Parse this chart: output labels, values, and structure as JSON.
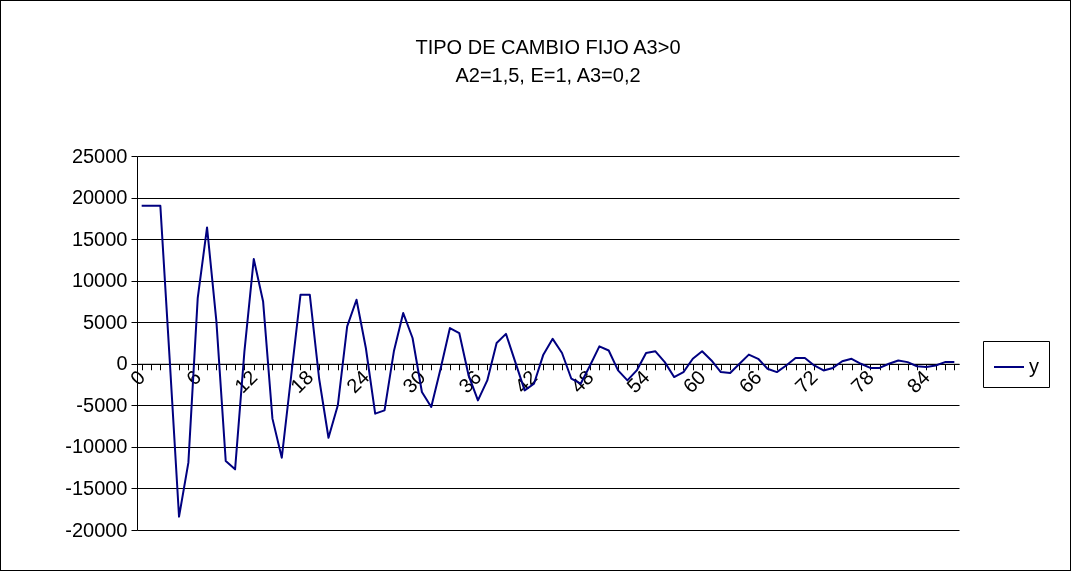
{
  "chart_data": {
    "type": "line",
    "title": "TIPO DE CAMBIO FIJO A3>0",
    "subtitle": "A2=1,5, E=1, A3=0,2",
    "categories": [
      "0",
      null,
      null,
      null,
      null,
      null,
      "6",
      null,
      null,
      null,
      null,
      null,
      "12",
      null,
      null,
      null,
      null,
      null,
      "18",
      null,
      null,
      null,
      null,
      null,
      "24",
      null,
      null,
      null,
      null,
      null,
      "30",
      null,
      null,
      null,
      null,
      null,
      "36",
      null,
      null,
      null,
      null,
      null,
      "42",
      null,
      null,
      null,
      null,
      null,
      "48",
      null,
      null,
      null,
      null,
      null,
      "54",
      null,
      null,
      null,
      null,
      null,
      "60",
      null,
      null,
      null,
      null,
      null,
      "66",
      null,
      null,
      null,
      null,
      null,
      "72",
      null,
      null,
      null,
      null,
      null,
      "78",
      null,
      null,
      null,
      null,
      null,
      "84",
      null,
      null,
      null
    ],
    "series": [
      {
        "name": "y",
        "color": "#000080",
        "values": [
          19000,
          19000,
          19000,
          500,
          -18400,
          -11900,
          7900,
          16400,
          5100,
          -11700,
          -12700,
          1500,
          12600,
          7500,
          -6600,
          -11300,
          -1500,
          8300,
          8300,
          -1800,
          -8900,
          -5000,
          4500,
          7700,
          1900,
          -6000,
          -5600,
          1500,
          6100,
          3100,
          -3400,
          -5200,
          -600,
          4300,
          3700,
          -1400,
          -4400,
          -2000,
          2500,
          3600,
          200,
          -3200,
          -2400,
          1100,
          3000,
          1300,
          -1800,
          -2400,
          -200,
          2100,
          1600,
          -800,
          -2000,
          -800,
          1300,
          1500,
          200,
          -1600,
          -1000,
          600,
          1500,
          400,
          -1000,
          -1100,
          0,
          1100,
          600,
          -600,
          -1000,
          -200,
          700,
          700,
          -200,
          -800,
          -500,
          300,
          600,
          0,
          -500,
          -500,
          0,
          400,
          200,
          -300,
          -400,
          -200,
          200,
          200
        ]
      }
    ],
    "ylim": [
      -20000,
      25000
    ],
    "yticks": [
      -20000,
      -15000,
      -10000,
      -5000,
      0,
      5000,
      10000,
      15000,
      20000,
      25000
    ],
    "grid": "y",
    "legend": "right",
    "marker": "none",
    "line_style": "solid"
  }
}
